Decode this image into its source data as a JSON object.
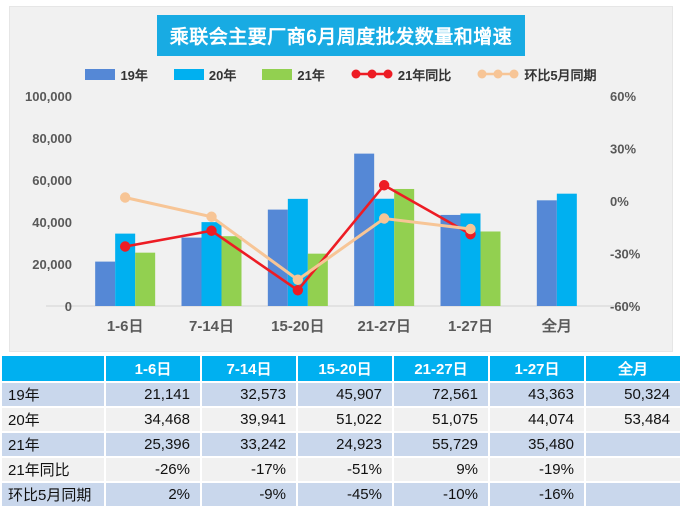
{
  "title": "乘联会主要厂商6月周度批发数量和增速",
  "legend": [
    {
      "label": "19年",
      "type": "bar",
      "color": "#5588d6"
    },
    {
      "label": "20年",
      "type": "bar",
      "color": "#00b0f0"
    },
    {
      "label": "21年",
      "type": "bar",
      "color": "#92d050"
    },
    {
      "label": "21年同比",
      "type": "line",
      "color": "#ed1c24"
    },
    {
      "label": "环比5月同期",
      "type": "line",
      "color": "#f7c596"
    }
  ],
  "chart_data": {
    "type": "bar+line combo",
    "categories": [
      "1-6日",
      "7-14日",
      "15-20日",
      "21-27日",
      "1-27日",
      "全月"
    ],
    "bar_series": [
      {
        "name": "19年",
        "color": "#5588d6",
        "values": [
          21141,
          32573,
          45907,
          72561,
          43363,
          50324
        ]
      },
      {
        "name": "20年",
        "color": "#00b0f0",
        "values": [
          34468,
          39941,
          51022,
          51075,
          44074,
          53484
        ]
      },
      {
        "name": "21年",
        "color": "#92d050",
        "values": [
          25396,
          33242,
          24923,
          55729,
          35480,
          null
        ]
      }
    ],
    "line_series": [
      {
        "name": "21年同比",
        "color": "#ed1c24",
        "values_pct": [
          -26,
          -17,
          -51,
          9,
          -19,
          null
        ]
      },
      {
        "name": "环比5月同期",
        "color": "#f7c596",
        "values_pct": [
          2,
          -9,
          -45,
          -10,
          -16,
          null
        ]
      }
    ],
    "left_axis": {
      "min": 0,
      "max": 100000,
      "step": 20000,
      "tick_labels": [
        "0",
        "20,000",
        "40,000",
        "60,000",
        "80,000",
        "100,000"
      ]
    },
    "right_axis": {
      "min": -60,
      "max": 60,
      "step": 30,
      "tick_labels": [
        "-60%",
        "-30%",
        "0%",
        "30%",
        "60%"
      ]
    },
    "grid": "off",
    "legend_position": "top"
  },
  "table": {
    "header": [
      "",
      "1-6日",
      "7-14日",
      "15-20日",
      "21-27日",
      "1-27日",
      "全月"
    ],
    "rows": [
      {
        "label": "19年",
        "values": [
          "21,141",
          "32,573",
          "45,907",
          "72,561",
          "43,363",
          "50,324"
        ]
      },
      {
        "label": "20年",
        "values": [
          "34,468",
          "39,941",
          "51,022",
          "51,075",
          "44,074",
          "53,484"
        ]
      },
      {
        "label": "21年",
        "values": [
          "25,396",
          "33,242",
          "24,923",
          "55,729",
          "35,480",
          ""
        ]
      },
      {
        "label": "21年同比",
        "values": [
          "-26%",
          "-17%",
          "-51%",
          "9%",
          "-19%",
          ""
        ]
      },
      {
        "label": "环比5月同期",
        "values": [
          "2%",
          "-9%",
          "-45%",
          "-10%",
          "-16%",
          ""
        ]
      }
    ]
  },
  "colors": {
    "panel_background": "#f1f1f1",
    "title_background": "#18abe3",
    "title_text": "#ffffff",
    "table_header_background": "#00b0f0",
    "table_band_blue": "#c9d7ec",
    "table_band_light": "#f1f1f1",
    "axis_text": "#595959",
    "axis_line": "#d9d9d9"
  }
}
